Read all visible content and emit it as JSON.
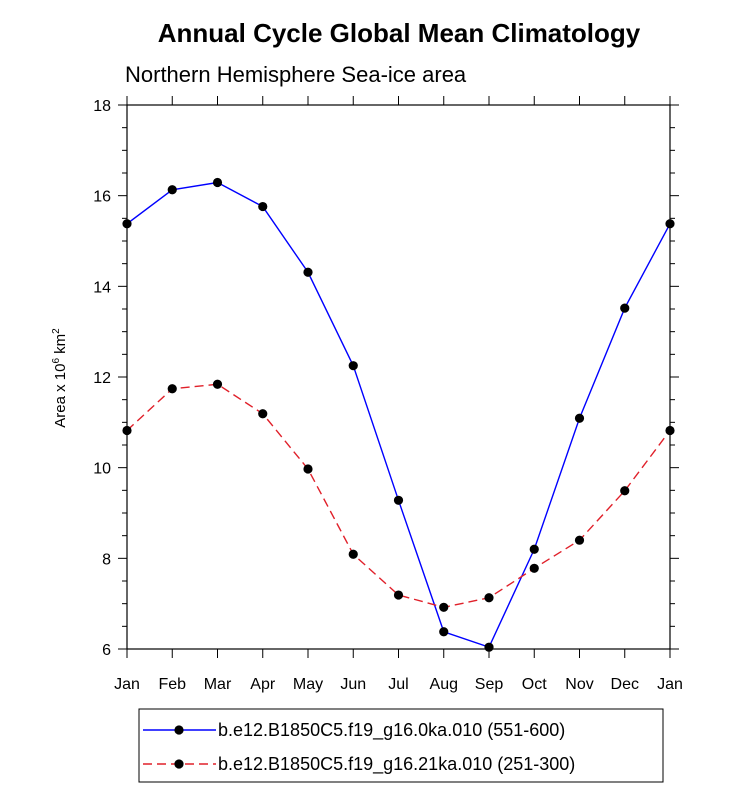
{
  "chart_data": {
    "type": "line",
    "title": "Annual Cycle Global Mean Climatology",
    "subtitle": "Northern Hemisphere Sea-ice area",
    "ylabel_prefix": "Area x 10",
    "ylabel_exponent": "6",
    "ylabel_unit": " km",
    "ylabel_unit_exponent": "2",
    "xlabel": "",
    "categories": [
      "Jan",
      "Feb",
      "Mar",
      "Apr",
      "May",
      "Jun",
      "Jul",
      "Aug",
      "Sep",
      "Oct",
      "Nov",
      "Dec",
      "Jan"
    ],
    "ylim": [
      6,
      18
    ],
    "yticks": [
      6,
      8,
      10,
      12,
      14,
      16,
      18
    ],
    "series": [
      {
        "name": "b.e12.B1850C5.f19_g16.0ka.010 (551-600)",
        "color": "#0000ff",
        "dash": "solid",
        "values": [
          15.38,
          16.13,
          16.29,
          15.76,
          14.31,
          12.25,
          9.28,
          6.38,
          6.04,
          8.2,
          11.09,
          13.52,
          15.38
        ]
      },
      {
        "name": "b.e12.B1850C5.f19_g16.21ka.010 (251-300)",
        "color": "#e0202a",
        "dash": "dashed",
        "values": [
          10.82,
          11.74,
          11.84,
          11.19,
          9.97,
          8.09,
          7.19,
          6.92,
          7.13,
          7.78,
          8.4,
          9.49,
          10.82
        ]
      }
    ]
  }
}
